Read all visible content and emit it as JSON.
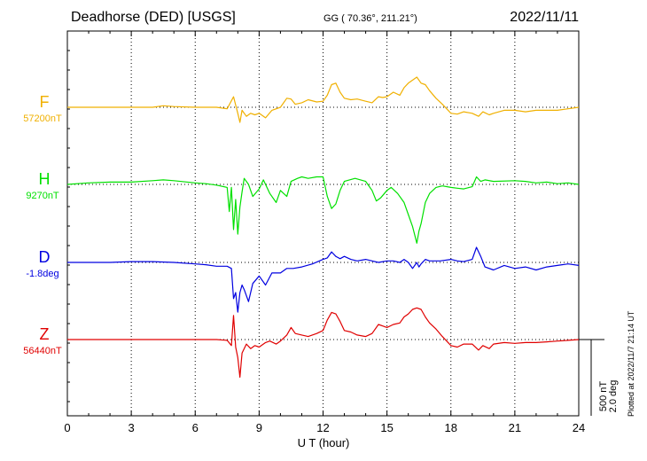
{
  "header": {
    "station": "Deadhorse (DED)  [USGS]",
    "coords": "GG ( 70.36°, 211.21°)",
    "date": "2022/11/11"
  },
  "plotted_note": "Plotted at 2022/11/7 21:14 UT",
  "scale": {
    "nt": "500 nT",
    "deg": "2.0 deg"
  },
  "chart_data": {
    "type": "line",
    "xlabel": "U T (hour)",
    "x_ticks": [
      0,
      3,
      6,
      9,
      12,
      15,
      18,
      21,
      24
    ],
    "x_tick_labels": [
      "0",
      "3",
      "6",
      "9",
      "12",
      "15",
      "18",
      "21",
      "24"
    ],
    "xlim": [
      0,
      24
    ],
    "grid": true,
    "series": [
      {
        "name": "F",
        "base_label": "57200nT",
        "color": "#f0b000",
        "points": [
          [
            0,
            0
          ],
          [
            1,
            0
          ],
          [
            2,
            0
          ],
          [
            3,
            0
          ],
          [
            4,
            0
          ],
          [
            4.5,
            10
          ],
          [
            5,
            5
          ],
          [
            6,
            0
          ],
          [
            6.5,
            0
          ],
          [
            7,
            0
          ],
          [
            7.5,
            -10
          ],
          [
            7.8,
            70
          ],
          [
            8.0,
            -40
          ],
          [
            8.1,
            -100
          ],
          [
            8.2,
            -20
          ],
          [
            8.4,
            -60
          ],
          [
            8.6,
            -40
          ],
          [
            8.8,
            -50
          ],
          [
            9.0,
            -40
          ],
          [
            9.3,
            -70
          ],
          [
            9.6,
            -20
          ],
          [
            10,
            0
          ],
          [
            10.3,
            60
          ],
          [
            10.5,
            55
          ],
          [
            10.7,
            20
          ],
          [
            11.0,
            30
          ],
          [
            11.3,
            50
          ],
          [
            11.7,
            35
          ],
          [
            12.0,
            40
          ],
          [
            12.2,
            80
          ],
          [
            12.4,
            150
          ],
          [
            12.6,
            160
          ],
          [
            12.8,
            100
          ],
          [
            13.0,
            60
          ],
          [
            13.3,
            50
          ],
          [
            13.6,
            55
          ],
          [
            14.0,
            40
          ],
          [
            14.3,
            30
          ],
          [
            14.6,
            70
          ],
          [
            14.8,
            65
          ],
          [
            15.0,
            70
          ],
          [
            15.3,
            100
          ],
          [
            15.6,
            80
          ],
          [
            15.8,
            130
          ],
          [
            16.0,
            160
          ],
          [
            16.2,
            180
          ],
          [
            16.4,
            200
          ],
          [
            16.6,
            160
          ],
          [
            16.8,
            150
          ],
          [
            17.0,
            110
          ],
          [
            17.3,
            60
          ],
          [
            17.6,
            20
          ],
          [
            18.0,
            -40
          ],
          [
            18.3,
            -45
          ],
          [
            18.6,
            -30
          ],
          [
            19.0,
            -40
          ],
          [
            19.3,
            -60
          ],
          [
            19.5,
            -30
          ],
          [
            19.8,
            -50
          ],
          [
            20.0,
            -40
          ],
          [
            20.5,
            -20
          ],
          [
            21.0,
            -20
          ],
          [
            21.5,
            -30
          ],
          [
            22.0,
            -20
          ],
          [
            22.5,
            -20
          ],
          [
            23,
            -20
          ],
          [
            23.5,
            -10
          ],
          [
            24,
            0
          ]
        ]
      },
      {
        "name": "H",
        "base_label": "9270nT",
        "color": "#00e000",
        "points": [
          [
            0,
            0
          ],
          [
            1,
            10
          ],
          [
            2,
            15
          ],
          [
            3,
            15
          ],
          [
            4,
            25
          ],
          [
            4.5,
            30
          ],
          [
            5,
            25
          ],
          [
            6,
            10
          ],
          [
            6.5,
            5
          ],
          [
            7,
            -5
          ],
          [
            7.5,
            -20
          ],
          [
            7.6,
            -180
          ],
          [
            7.7,
            -20
          ],
          [
            7.8,
            -300
          ],
          [
            7.9,
            -100
          ],
          [
            8.0,
            -330
          ],
          [
            8.1,
            -150
          ],
          [
            8.2,
            -50
          ],
          [
            8.3,
            40
          ],
          [
            8.5,
            0
          ],
          [
            8.7,
            -80
          ],
          [
            9.0,
            -30
          ],
          [
            9.2,
            30
          ],
          [
            9.5,
            -60
          ],
          [
            9.8,
            -120
          ],
          [
            10.0,
            -40
          ],
          [
            10.3,
            -80
          ],
          [
            10.5,
            20
          ],
          [
            10.8,
            40
          ],
          [
            11.0,
            50
          ],
          [
            11.3,
            40
          ],
          [
            11.7,
            50
          ],
          [
            12.0,
            50
          ],
          [
            12.2,
            -80
          ],
          [
            12.4,
            -160
          ],
          [
            12.6,
            -130
          ],
          [
            12.8,
            -40
          ],
          [
            13.0,
            20
          ],
          [
            13.5,
            40
          ],
          [
            14.0,
            20
          ],
          [
            14.3,
            -40
          ],
          [
            14.5,
            -110
          ],
          [
            14.7,
            -90
          ],
          [
            15.0,
            -40
          ],
          [
            15.2,
            -20
          ],
          [
            15.5,
            -60
          ],
          [
            15.8,
            -120
          ],
          [
            16.0,
            -200
          ],
          [
            16.2,
            -280
          ],
          [
            16.4,
            -390
          ],
          [
            16.5,
            -310
          ],
          [
            16.6,
            -260
          ],
          [
            16.8,
            -120
          ],
          [
            17.0,
            -60
          ],
          [
            17.3,
            -20
          ],
          [
            17.6,
            -10
          ],
          [
            18.0,
            -20
          ],
          [
            18.3,
            -25
          ],
          [
            18.6,
            -30
          ],
          [
            19.0,
            -15
          ],
          [
            19.2,
            50
          ],
          [
            19.4,
            20
          ],
          [
            19.6,
            30
          ],
          [
            20,
            20
          ],
          [
            21,
            25
          ],
          [
            21.5,
            20
          ],
          [
            22,
            10
          ],
          [
            22.5,
            15
          ],
          [
            23,
            5
          ],
          [
            23.5,
            10
          ],
          [
            24,
            0
          ]
        ]
      },
      {
        "name": "D",
        "base_label": "-1.8deg",
        "color": "#0000e0",
        "points": [
          [
            0,
            0
          ],
          [
            1,
            0
          ],
          [
            2,
            0
          ],
          [
            3,
            5
          ],
          [
            4,
            5
          ],
          [
            5,
            0
          ],
          [
            6,
            -10
          ],
          [
            6.5,
            -15
          ],
          [
            7,
            -25
          ],
          [
            7.5,
            -25
          ],
          [
            7.7,
            -40
          ],
          [
            7.8,
            -240
          ],
          [
            7.9,
            -200
          ],
          [
            8.0,
            -330
          ],
          [
            8.1,
            -200
          ],
          [
            8.2,
            -150
          ],
          [
            8.3,
            -180
          ],
          [
            8.5,
            -260
          ],
          [
            8.7,
            -140
          ],
          [
            9.0,
            -90
          ],
          [
            9.3,
            -150
          ],
          [
            9.6,
            -70
          ],
          [
            10.0,
            -70
          ],
          [
            10.3,
            -40
          ],
          [
            10.6,
            -40
          ],
          [
            11.0,
            -30
          ],
          [
            11.5,
            -10
          ],
          [
            12.0,
            20
          ],
          [
            12.2,
            30
          ],
          [
            12.4,
            70
          ],
          [
            12.6,
            40
          ],
          [
            12.8,
            25
          ],
          [
            13.0,
            40
          ],
          [
            13.3,
            20
          ],
          [
            13.6,
            10
          ],
          [
            14.0,
            20
          ],
          [
            14.3,
            10
          ],
          [
            14.6,
            0
          ],
          [
            15.0,
            10
          ],
          [
            15.3,
            10
          ],
          [
            15.6,
            0
          ],
          [
            15.8,
            20
          ],
          [
            16.0,
            0
          ],
          [
            16.2,
            -40
          ],
          [
            16.4,
            0
          ],
          [
            16.5,
            -30
          ],
          [
            16.6,
            -10
          ],
          [
            16.8,
            20
          ],
          [
            17,
            10
          ],
          [
            17.5,
            10
          ],
          [
            18,
            20
          ],
          [
            18.3,
            10
          ],
          [
            18.6,
            5
          ],
          [
            19,
            20
          ],
          [
            19.2,
            100
          ],
          [
            19.4,
            40
          ],
          [
            19.6,
            -30
          ],
          [
            20,
            -50
          ],
          [
            20.5,
            -20
          ],
          [
            21,
            -40
          ],
          [
            21.5,
            -30
          ],
          [
            22,
            -50
          ],
          [
            22.5,
            -30
          ],
          [
            23,
            -20
          ],
          [
            23.5,
            -10
          ],
          [
            24,
            -20
          ]
        ]
      },
      {
        "name": "Z",
        "base_label": "56440nT",
        "color": "#e00000",
        "points": [
          [
            0,
            0
          ],
          [
            1,
            0
          ],
          [
            2,
            0
          ],
          [
            3,
            0
          ],
          [
            4,
            0
          ],
          [
            5,
            0
          ],
          [
            6,
            0
          ],
          [
            7,
            0
          ],
          [
            7.5,
            -5
          ],
          [
            7.7,
            -40
          ],
          [
            7.8,
            160
          ],
          [
            7.9,
            -50
          ],
          [
            8.0,
            -120
          ],
          [
            8.1,
            -250
          ],
          [
            8.2,
            -90
          ],
          [
            8.4,
            -30
          ],
          [
            8.6,
            -60
          ],
          [
            8.8,
            -40
          ],
          [
            9.0,
            -50
          ],
          [
            9.3,
            -20
          ],
          [
            9.5,
            -10
          ],
          [
            9.8,
            -30
          ],
          [
            10.0,
            -10
          ],
          [
            10.3,
            30
          ],
          [
            10.5,
            80
          ],
          [
            10.7,
            40
          ],
          [
            11.0,
            30
          ],
          [
            11.3,
            20
          ],
          [
            11.7,
            40
          ],
          [
            12.0,
            60
          ],
          [
            12.2,
            130
          ],
          [
            12.4,
            180
          ],
          [
            12.6,
            170
          ],
          [
            12.8,
            120
          ],
          [
            13.0,
            60
          ],
          [
            13.3,
            50
          ],
          [
            13.6,
            30
          ],
          [
            14.0,
            20
          ],
          [
            14.3,
            40
          ],
          [
            14.6,
            100
          ],
          [
            14.8,
            90
          ],
          [
            15.0,
            80
          ],
          [
            15.3,
            100
          ],
          [
            15.6,
            110
          ],
          [
            15.8,
            150
          ],
          [
            16.0,
            170
          ],
          [
            16.2,
            200
          ],
          [
            16.4,
            210
          ],
          [
            16.6,
            200
          ],
          [
            16.8,
            150
          ],
          [
            17.0,
            110
          ],
          [
            17.3,
            70
          ],
          [
            17.6,
            20
          ],
          [
            18.0,
            -40
          ],
          [
            18.3,
            -50
          ],
          [
            18.6,
            -30
          ],
          [
            19.0,
            -30
          ],
          [
            19.3,
            -70
          ],
          [
            19.5,
            -40
          ],
          [
            19.8,
            -60
          ],
          [
            20.0,
            -30
          ],
          [
            20.5,
            -20
          ],
          [
            21,
            -25
          ],
          [
            21.5,
            -20
          ],
          [
            22,
            -20
          ],
          [
            22.5,
            -15
          ],
          [
            23,
            -10
          ],
          [
            23.5,
            -5
          ],
          [
            24,
            0
          ]
        ]
      }
    ]
  }
}
